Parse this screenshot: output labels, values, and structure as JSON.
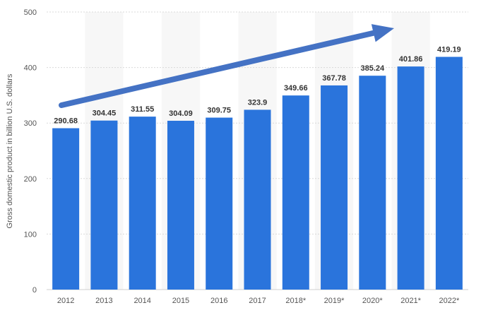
{
  "chart_data": {
    "type": "bar",
    "categories": [
      "2012",
      "2013",
      "2014",
      "2015",
      "2016",
      "2017",
      "2018*",
      "2019*",
      "2020*",
      "2021*",
      "2022*"
    ],
    "values": [
      290.68,
      304.45,
      311.55,
      304.09,
      309.75,
      323.9,
      349.66,
      367.78,
      385.24,
      401.86,
      419.19
    ],
    "value_labels": [
      "290.68",
      "304.45",
      "311.55",
      "304.09",
      "309.75",
      "323.9",
      "349.66",
      "367.78",
      "385.24",
      "401.86",
      "419.19"
    ],
    "ylabel": "Gross domestic product in billion U.S. dollars",
    "ylim": [
      0,
      500
    ],
    "yticks": [
      0,
      100,
      200,
      300,
      400,
      500
    ],
    "grid": true,
    "bar_color": "#2a74dc",
    "trend_arrow": true,
    "arrow_color": "#4472c4"
  }
}
